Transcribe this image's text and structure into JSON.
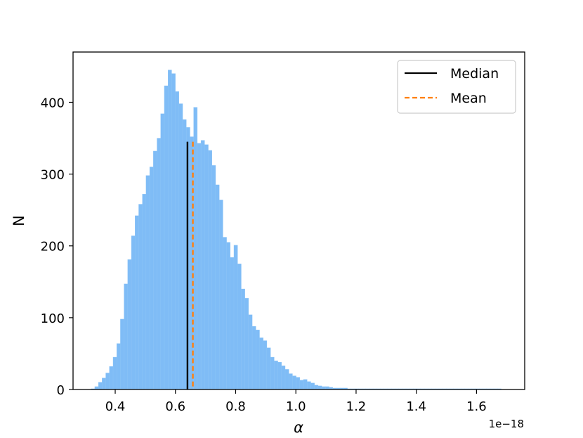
{
  "chart_data": {
    "type": "histogram",
    "xlabel": "α",
    "ylabel": "N",
    "x_offset_label": "1e−18",
    "xlim": [
      0.26,
      1.76
    ],
    "ylim": [
      0,
      470
    ],
    "xticks": [
      0.4,
      0.6,
      0.8,
      1.0,
      1.2,
      1.4,
      1.6
    ],
    "xtick_labels": [
      "0.4",
      "0.6",
      "0.8",
      "1.0",
      "1.2",
      "1.4",
      "1.6"
    ],
    "yticks": [
      0,
      100,
      200,
      300,
      400
    ],
    "ytick_labels": [
      "0",
      "100",
      "200",
      "300",
      "400"
    ],
    "bin_start": 0.32,
    "bin_width": 0.01216,
    "counts": [
      1,
      4,
      10,
      16,
      23,
      32,
      45,
      64,
      98,
      147,
      181,
      214,
      242,
      258,
      272,
      298,
      310,
      332,
      350,
      384,
      423,
      445,
      440,
      415,
      398,
      376,
      365,
      352,
      393,
      343,
      347,
      341,
      333,
      312,
      285,
      264,
      212,
      205,
      184,
      201,
      175,
      140,
      127,
      104,
      88,
      83,
      72,
      68,
      58,
      45,
      40,
      38,
      33,
      28,
      22,
      19,
      17,
      13,
      14,
      11,
      9,
      6,
      5,
      4,
      4,
      3,
      2,
      2,
      2,
      2,
      1,
      1,
      1,
      1,
      1,
      1,
      1,
      1,
      1,
      1,
      1,
      1,
      1,
      1,
      1,
      1,
      1,
      1,
      1,
      1,
      1,
      1,
      1,
      1,
      1,
      1,
      1,
      1,
      1,
      1,
      1,
      1,
      1,
      1,
      1,
      1,
      1,
      1,
      1,
      1,
      1,
      1,
      0,
      0
    ],
    "median": 0.64,
    "mean": 0.658,
    "marker_height": 345,
    "grid": false,
    "legend_position": "top-right",
    "series": [
      {
        "name": "Median",
        "color": "#000000",
        "style": "solid"
      },
      {
        "name": "Mean",
        "color": "#ff7f0e",
        "style": "dashed"
      }
    ],
    "colors": {
      "bars": "#7fbcf6",
      "bars_edge": "#8cc4f7"
    }
  }
}
